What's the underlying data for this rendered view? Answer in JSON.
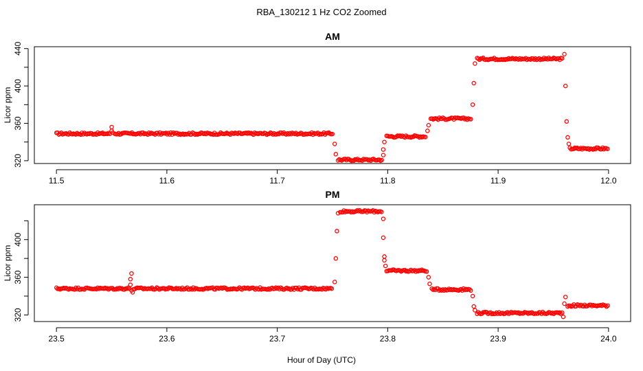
{
  "title": "RBA_130212  1 Hz CO2 Zoomed",
  "xlabel": "Hour of Day (UTC)",
  "chart_data": [
    {
      "type": "scatter",
      "panel_title": "AM",
      "ylabel": "Licor ppm",
      "xlim": [
        11.48,
        12.02
      ],
      "ylim": [
        317,
        442
      ],
      "xticks": [
        11.5,
        11.6,
        11.7,
        11.8,
        11.9,
        12.0
      ],
      "xtick_labels": [
        "11.5",
        "11.6",
        "11.7",
        "11.8",
        "11.9",
        "12.0"
      ],
      "yticks": [
        320,
        340,
        360,
        380,
        400,
        420,
        440
      ],
      "ytick_labels": [
        "320",
        "",
        "360",
        "",
        "400",
        "",
        "440"
      ],
      "color": "#ff0000",
      "segments": [
        {
          "x": [
            11.5,
            11.549
          ],
          "y": 349
        },
        {
          "x": [
            11.553,
            11.75
          ],
          "y": 349
        },
        {
          "x": [
            11.755,
            11.795
          ],
          "y": 321
        },
        {
          "x": [
            11.799,
            11.835
          ],
          "y": 346
        },
        {
          "x": [
            11.839,
            11.876
          ],
          "y": 365
        },
        {
          "x": [
            11.881,
            11.959
          ],
          "y": 429
        },
        {
          "x": [
            11.965,
            12.0
          ],
          "y": 333
        }
      ],
      "spike_points": [
        [
          11.55,
          352
        ],
        [
          11.55,
          356
        ],
        [
          11.551,
          350
        ]
      ],
      "transition_points": [
        [
          11.752,
          338
        ],
        [
          11.753,
          327
        ],
        [
          11.796,
          326
        ],
        [
          11.796,
          332
        ],
        [
          11.797,
          340
        ],
        [
          11.836,
          352
        ],
        [
          11.837,
          358
        ],
        [
          11.877,
          380
        ],
        [
          11.878,
          403
        ],
        [
          11.879,
          424
        ],
        [
          11.96,
          434
        ],
        [
          11.961,
          400
        ],
        [
          11.962,
          362
        ],
        [
          11.963,
          345
        ],
        [
          11.964,
          338
        ]
      ]
    },
    {
      "type": "scatter",
      "panel_title": "PM",
      "ylabel": "Licor ppm",
      "xlim": [
        23.48,
        24.02
      ],
      "ylim": [
        313,
        437
      ],
      "xticks": [
        23.5,
        23.6,
        23.7,
        23.8,
        23.9,
        24.0
      ],
      "xtick_labels": [
        "23.5",
        "23.6",
        "23.7",
        "23.8",
        "23.9",
        "24.0"
      ],
      "yticks": [
        320,
        340,
        360,
        380,
        400,
        420
      ],
      "ytick_labels": [
        "320",
        "",
        "360",
        "",
        "400",
        ""
      ],
      "color": "#ff0000",
      "segments": [
        {
          "x": [
            23.5,
            23.566
          ],
          "y": 348
        },
        {
          "x": [
            23.57,
            23.75
          ],
          "y": 348
        },
        {
          "x": [
            23.757,
            23.795
          ],
          "y": 430
        },
        {
          "x": [
            23.799,
            23.836
          ],
          "y": 367
        },
        {
          "x": [
            23.84,
            23.876
          ],
          "y": 347
        },
        {
          "x": [
            23.881,
            23.958
          ],
          "y": 322
        },
        {
          "x": [
            23.963,
            24.0
          ],
          "y": 330
        }
      ],
      "spike_points": [
        [
          23.567,
          352
        ],
        [
          23.567,
          358
        ],
        [
          23.568,
          364
        ],
        [
          23.568,
          346
        ],
        [
          23.569,
          344
        ]
      ],
      "transition_points": [
        [
          23.752,
          355
        ],
        [
          23.753,
          380
        ],
        [
          23.754,
          409
        ],
        [
          23.755,
          428
        ],
        [
          23.796,
          422
        ],
        [
          23.796,
          402
        ],
        [
          23.797,
          382
        ],
        [
          23.797,
          378
        ],
        [
          23.798,
          372
        ],
        [
          23.837,
          360
        ],
        [
          23.838,
          353
        ],
        [
          23.877,
          340
        ],
        [
          23.878,
          329
        ],
        [
          23.879,
          325
        ],
        [
          23.959,
          318
        ],
        [
          23.96,
          332
        ],
        [
          23.961,
          339
        ]
      ]
    }
  ]
}
